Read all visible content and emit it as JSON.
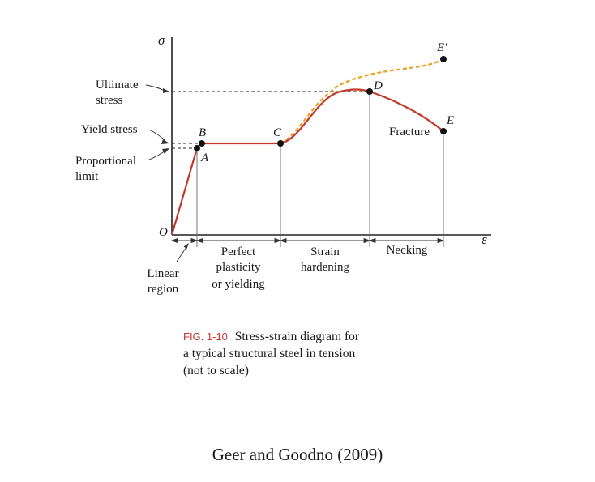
{
  "axes": {
    "y_symbol": "σ",
    "x_symbol": "ε",
    "origin_label": "O"
  },
  "points": {
    "a": "A",
    "b": "B",
    "c": "C",
    "d": "D",
    "e": "E",
    "e_prime": "E'"
  },
  "left_labels": {
    "ultimate": [
      "Ultimate",
      "stress"
    ],
    "yield": "Yield stress",
    "proportional": [
      "Proportional",
      "limit"
    ]
  },
  "fracture_label": "Fracture",
  "regions": {
    "linear": [
      "Linear",
      "region"
    ],
    "plasticity": [
      "Perfect",
      "plasticity",
      "or yielding"
    ],
    "hardening": [
      "Strain",
      "hardening"
    ],
    "necking": "Necking"
  },
  "caption": {
    "figure_number": "FIG. 1-10",
    "lines": [
      "Stress-strain diagram for",
      "a typical structural steel in tension",
      "(not to scale)"
    ]
  },
  "credit": "Geer and Goodno (2009)",
  "colors": {
    "curve": "#c0392b",
    "dashed_true_curve": "#e8a020",
    "axis": "#222222"
  }
}
